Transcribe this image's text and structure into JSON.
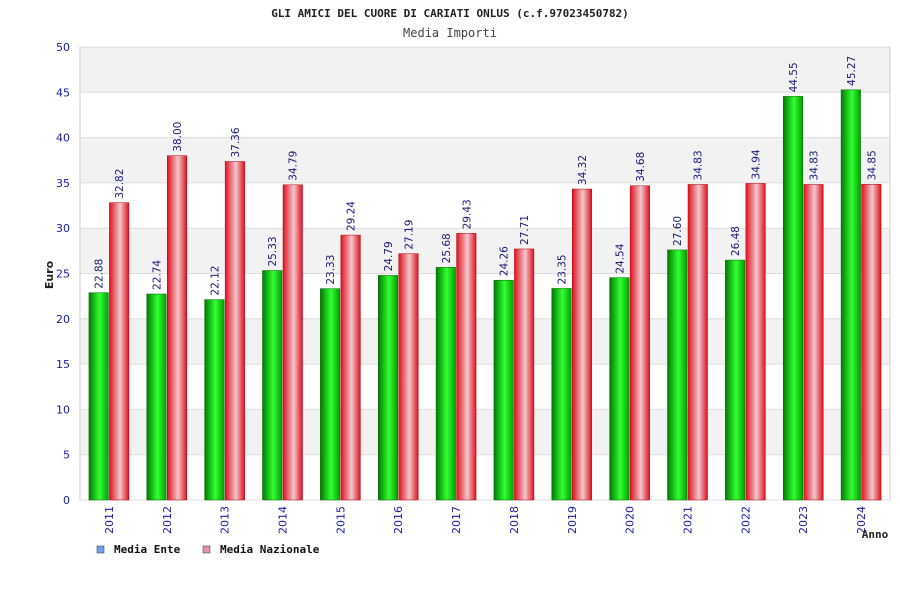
{
  "chart_data": {
    "type": "bar",
    "title": "GLI AMICI DEL CUORE DI CARIATI ONLUS (c.f.97023450782)",
    "subtitle": "Media Importi",
    "xlabel": "Anno",
    "ylabel": "Euro",
    "ylim": [
      0,
      50
    ],
    "yticks": [
      "0",
      "5",
      "10",
      "15",
      "20",
      "25",
      "30",
      "35",
      "40",
      "45",
      "50"
    ],
    "categories": [
      "2011",
      "2012",
      "2013",
      "2014",
      "2015",
      "2016",
      "2017",
      "2018",
      "2019",
      "2020",
      "2021",
      "2022",
      "2023",
      "2024"
    ],
    "series": [
      {
        "name": "Media Ente",
        "color": "#00c000",
        "legend_color": "#6aa3e8",
        "values": [
          22.88,
          22.74,
          22.12,
          25.33,
          23.33,
          24.79,
          25.68,
          24.26,
          23.35,
          24.54,
          27.6,
          26.48,
          44.55,
          45.27
        ],
        "labels": [
          "22.88",
          "22.74",
          "22.12",
          "25.33",
          "23.33",
          "24.79",
          "25.68",
          "24.26",
          "23.35",
          "24.54",
          "27.60",
          "26.48",
          "44.55",
          "45.27"
        ]
      },
      {
        "name": "Media Nazionale",
        "color": "#e8101e",
        "legend_color": "#e58fb2",
        "values": [
          32.82,
          38.0,
          37.36,
          34.79,
          29.24,
          27.19,
          29.43,
          27.71,
          34.32,
          34.68,
          34.83,
          34.94,
          34.83,
          34.85
        ],
        "labels": [
          "32.82",
          "38.00",
          "37.36",
          "34.79",
          "29.24",
          "27.19",
          "29.43",
          "27.71",
          "34.32",
          "34.68",
          "34.83",
          "34.94",
          "34.83",
          "34.85"
        ]
      }
    ],
    "grid": true,
    "legend": "bottom-left"
  }
}
